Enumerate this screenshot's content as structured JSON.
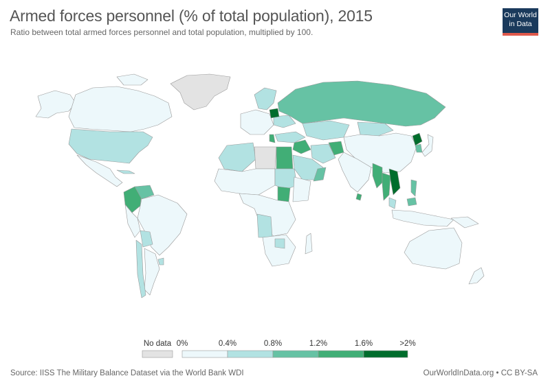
{
  "header": {
    "title": "Armed forces personnel (% of total population), 2015",
    "subtitle": "Ratio between total armed forces personnel and total population, multiplied by 100."
  },
  "logo": {
    "line1": "Our World",
    "line2": "in Data",
    "color": "#1a3a5c",
    "accent": "#e0594b"
  },
  "legend": {
    "no_data_label": "No data",
    "no_data_color": "#e3e3e3",
    "bins": [
      {
        "from": "0%",
        "to": "0.4%",
        "color": "#edf8fb"
      },
      {
        "from": "0.4%",
        "to": "0.8%",
        "color": "#b2e2e2"
      },
      {
        "from": "0.8%",
        "to": "1.2%",
        "color": "#66c2a4"
      },
      {
        "from": "1.2%",
        "to": "1.6%",
        "color": "#41ae76"
      },
      {
        "from": "1.6%",
        "to": ">2%",
        "color": "#238b45"
      },
      {
        "from": "",
        "to": "",
        "color": "#006d2c"
      }
    ],
    "tick_labels": [
      "0%",
      "0.4%",
      "0.8%",
      "1.2%",
      "1.6%",
      ">2%"
    ]
  },
  "footer": {
    "source": "Source: IISS The Military Balance Dataset via the World Bank WDI",
    "credit": "OurWorldInData.org • CC BY-SA"
  },
  "map": {
    "year": 2015,
    "colors": {
      "low": "#edf8fb",
      "mid_low": "#b2e2e2",
      "mid": "#66c2a4",
      "mid_high": "#41ae76",
      "high": "#238b45",
      "max": "#006d2c",
      "no_data": "#e3e3e3",
      "border": "#999999"
    }
  }
}
